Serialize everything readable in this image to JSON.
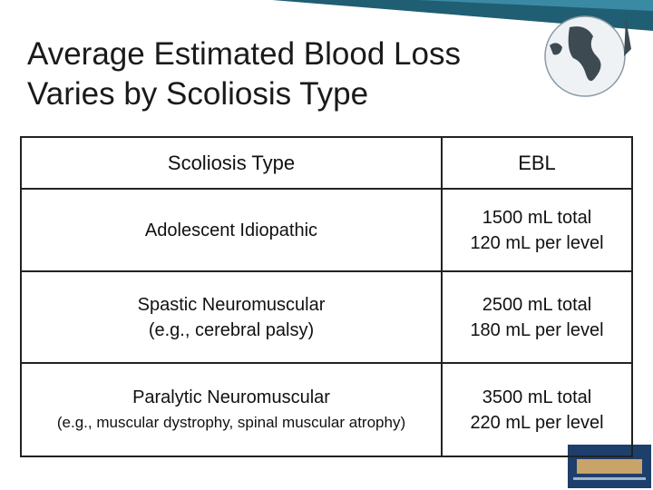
{
  "header": {
    "title": [
      "Average Estimated Blood Loss",
      "Varies by Scoliosis Type"
    ]
  },
  "table": {
    "columns": [
      "Scoliosis Type",
      "EBL"
    ],
    "rows": [
      [
        [
          "Adolescent Idiopathic"
        ],
        [
          "1500 mL total",
          "120 mL per level"
        ]
      ],
      [
        [
          "Spastic Neuromuscular",
          "(e.g., cerebral palsy)"
        ],
        [
          "2500 mL total",
          "180 mL per level"
        ]
      ],
      [
        [
          "Paralytic Neuromuscular",
          "(e.g., muscular dystrophy, spinal muscular atrophy)"
        ],
        [
          "3500 mL total",
          "220 mL per level"
        ]
      ]
    ]
  }
}
